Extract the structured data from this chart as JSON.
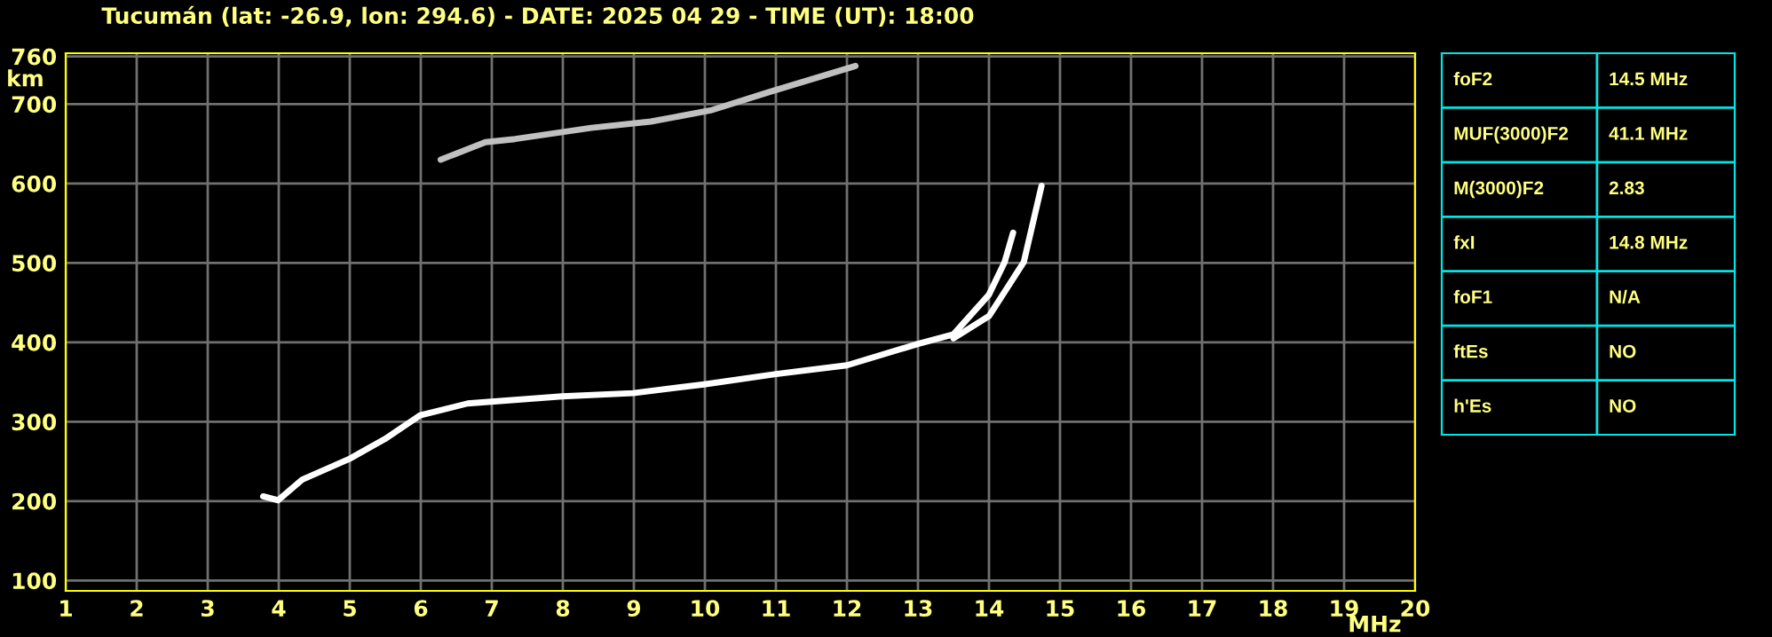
{
  "chart_data": [
    {
      "type": "line",
      "title": "Tucumán (lat: -26.9, lon: 294.6) - DATE: 2025 04 29 - TIME (UT): 18:00",
      "xlabel": "MHz",
      "ylabel": "km",
      "xlim": [
        1,
        20
      ],
      "ylim": [
        87,
        764
      ],
      "xticks": [
        1,
        2,
        3,
        4,
        5,
        6,
        7,
        8,
        9,
        10,
        11,
        12,
        13,
        14,
        15,
        16,
        17,
        18,
        19,
        20
      ],
      "yticks": [
        100,
        200,
        300,
        400,
        500,
        600,
        700,
        760
      ],
      "grid": true,
      "legend": false,
      "marker": "none",
      "line_style": "solid",
      "series": [
        {
          "color": "#ffffff",
          "x": [
            3.78,
            3.99,
            4.33,
            4.99,
            5.49,
            5.99,
            6.66,
            7.99,
            8.99,
            9.99,
            11,
            12,
            13,
            13.5,
            14.0,
            14.22,
            14.34
          ],
          "values": [
            206,
            201,
            227,
            253,
            278,
            308,
            323,
            332,
            336,
            347,
            360,
            371,
            398,
            410,
            460,
            501,
            538
          ]
        },
        {
          "color": "#ffffff",
          "x": [
            13.5,
            14.0,
            14.49,
            14.74
          ],
          "values": [
            405,
            433,
            501,
            597
          ]
        },
        {
          "color": "#c0c0c0",
          "x": [
            6.28,
            6.91,
            7.33,
            8.4,
            9.24,
            10.08,
            10.9,
            12.12
          ],
          "values": [
            630,
            652,
            656,
            670,
            678,
            692,
            715,
            748
          ]
        }
      ]
    },
    {
      "type": "other",
      "annotations": [
        "foF2",
        "14.5 MHz",
        "MUF(3000)F2",
        "41.1 MHz",
        "M(3000)F2",
        "2.83",
        "fxI",
        "14.8 MHz",
        "foF1",
        "N/A",
        "ftEs",
        "NO",
        "h'Es",
        "NO"
      ]
    }
  ]
}
